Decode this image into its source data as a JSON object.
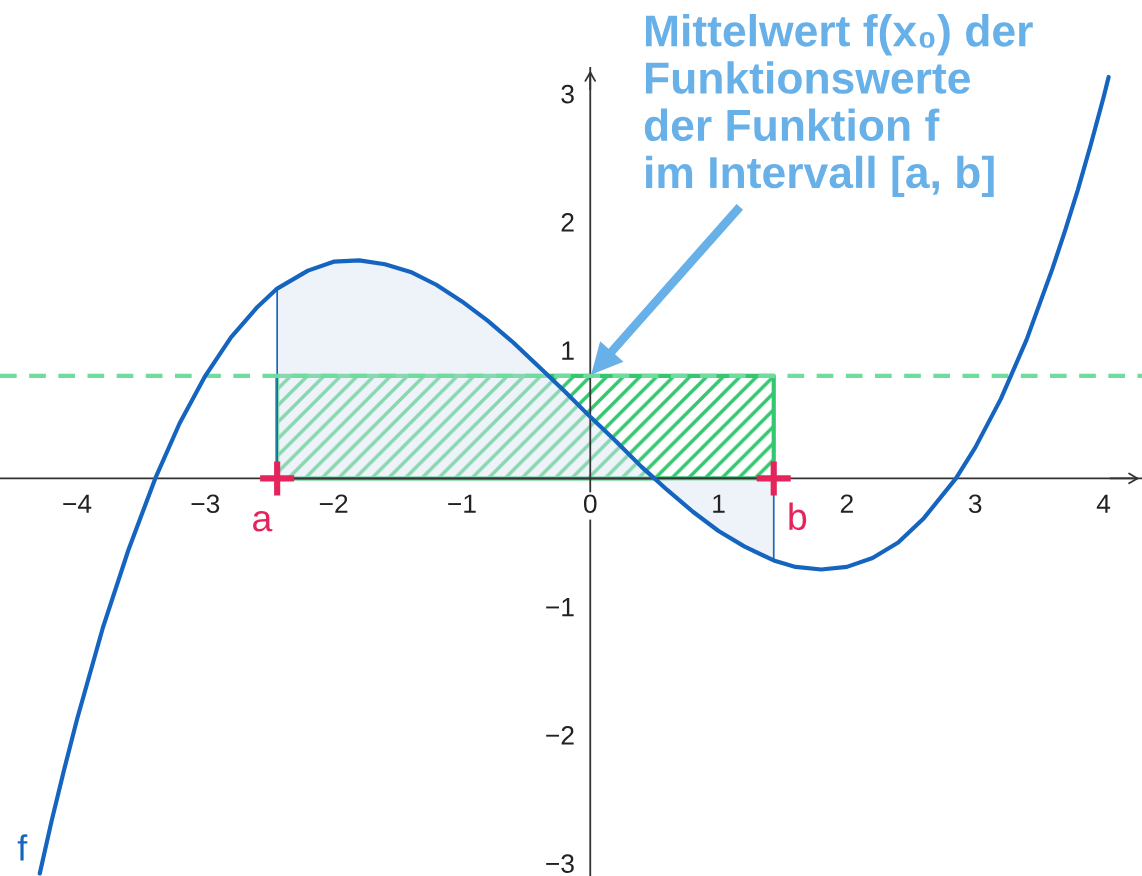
{
  "chart_data": {
    "type": "line",
    "annotations": [
      "Mittelwert f(x₀) der\nFunktionswerte\nder Funktion f\nim Intervall [a, b]",
      {
        "text": "a",
        "x": -2.44,
        "y": 0
      },
      {
        "text": "b",
        "x": 1.43,
        "y": 0
      }
    ],
    "xlim": [
      -4.6,
      4.3
    ],
    "ylim": [
      -3.1,
      3.2
    ],
    "xticks": [
      {
        "value": -4,
        "label": "−4"
      },
      {
        "value": -3,
        "label": "−3"
      },
      {
        "value": -2,
        "label": "−2"
      },
      {
        "value": -1,
        "label": "−1"
      },
      0,
      1,
      2,
      3,
      4
    ],
    "yticks": [
      {
        "value": -3,
        "label": "−3"
      },
      {
        "value": -2,
        "label": "−2"
      },
      {
        "value": -1,
        "label": "−1"
      },
      1,
      2,
      3
    ],
    "ref_lines": [
      {
        "axis": "y",
        "value": 0.8,
        "color": "#6edc9c",
        "line_style": "dashed"
      }
    ],
    "series": [
      {
        "name": "f",
        "color": "#1565c0",
        "x": [
          -4.29,
          -4.2,
          -4.1,
          -4.0,
          -3.8,
          -3.6,
          -3.39,
          -3.2,
          -3.0,
          -2.8,
          -2.6,
          -2.44,
          -2.2,
          -2.0,
          -1.8,
          -1.6,
          -1.4,
          -1.2,
          -1.0,
          -0.8,
          -0.6,
          -0.4,
          -0.2,
          0,
          0.2,
          0.4,
          0.5,
          0.6,
          0.8,
          1.0,
          1.2,
          1.43,
          1.6,
          1.8,
          2.0,
          2.2,
          2.4,
          2.6,
          2.85,
          3.0,
          3.2,
          3.4,
          3.6,
          3.7,
          3.8,
          3.9,
          4.0,
          4.04
        ],
        "values": [
          -3.08,
          -2.68,
          -2.27,
          -1.88,
          -1.17,
          -0.56,
          0,
          0.43,
          0.8,
          1.1,
          1.33,
          1.48,
          1.62,
          1.69,
          1.7,
          1.67,
          1.61,
          1.51,
          1.38,
          1.23,
          1.06,
          0.87,
          0.68,
          0.48,
          0.29,
          0.09,
          0,
          -0.09,
          -0.26,
          -0.41,
          -0.53,
          -0.64,
          -0.69,
          -0.71,
          -0.69,
          -0.62,
          -0.5,
          -0.31,
          0,
          0.24,
          0.62,
          1.08,
          1.63,
          1.93,
          2.25,
          2.6,
          2.97,
          3.13
        ]
      },
      {
        "type": "area",
        "color": "#dde7f4",
        "x": [
          -2.44,
          -2.2,
          -2.0,
          -1.8,
          -1.6,
          -1.4,
          -1.2,
          -1.0,
          -0.8,
          -0.6,
          -0.4,
          -0.2,
          0,
          0.2,
          0.4,
          0.5,
          0.6,
          0.8,
          1.0,
          1.2,
          1.43
        ],
        "values": [
          1.48,
          1.62,
          1.69,
          1.7,
          1.67,
          1.61,
          1.51,
          1.38,
          1.23,
          1.06,
          0.87,
          0.68,
          0.48,
          0.29,
          0.09,
          0,
          -0.09,
          -0.26,
          -0.41,
          -0.53,
          -0.64
        ]
      },
      {
        "type": "area",
        "color": "#34c76f",
        "x": [
          -2.44,
          1.43
        ],
        "values": [
          0.8,
          0.8
        ]
      },
      {
        "type": "scatter",
        "color": "#e4245b",
        "marker": "cross",
        "x": [
          -2.44,
          1.43
        ],
        "values": [
          0,
          0
        ]
      }
    ]
  }
}
